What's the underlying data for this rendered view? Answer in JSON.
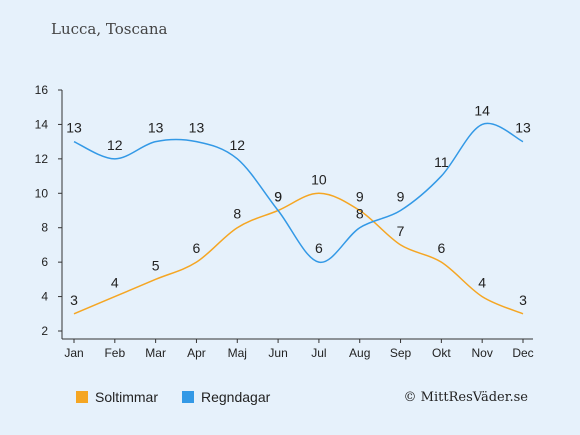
{
  "title": "Lucca, Toscana",
  "credit": "© MittResVäder.se",
  "chart_data": {
    "type": "line",
    "categories": [
      "Jan",
      "Feb",
      "Mar",
      "Apr",
      "Maj",
      "Jun",
      "Jul",
      "Aug",
      "Sep",
      "Okt",
      "Nov",
      "Dec"
    ],
    "ylim": [
      2,
      16
    ],
    "yticks": [
      2,
      4,
      6,
      8,
      10,
      12,
      14,
      16
    ],
    "grid": false,
    "legend_position": "bottom",
    "series": [
      {
        "name": "Soltimmar",
        "color": "#f5a623",
        "values": [
          3,
          4,
          5,
          6,
          8,
          9,
          10,
          9,
          7,
          6,
          4,
          3
        ]
      },
      {
        "name": "Regndagar",
        "color": "#3399e6",
        "values": [
          13,
          12,
          13,
          13,
          12,
          9,
          6,
          8,
          9,
          11,
          14,
          13
        ]
      }
    ]
  }
}
